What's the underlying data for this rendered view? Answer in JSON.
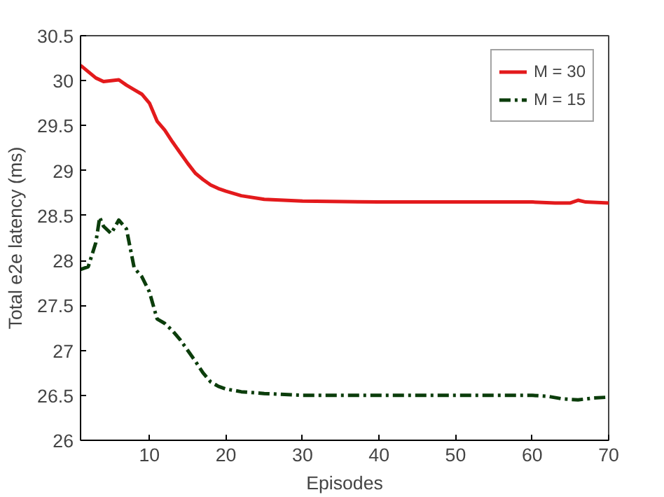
{
  "chart_data": {
    "type": "line",
    "xlabel": "Episodes",
    "ylabel": "Total e2e latency (ms)",
    "xlim": [
      1,
      70
    ],
    "ylim": [
      26,
      30.5
    ],
    "xticks": [
      10,
      20,
      30,
      40,
      50,
      60,
      70
    ],
    "yticks": [
      26,
      26.5,
      27,
      27.5,
      28,
      28.5,
      29,
      29.5,
      30,
      30.5
    ],
    "grid": false,
    "legend": "top right",
    "series": [
      {
        "name": "M = 30",
        "color": "#e31a1c",
        "line_style": "solid",
        "x": [
          1,
          2,
          3,
          4,
          5,
          6,
          7,
          8,
          9,
          10,
          11,
          12,
          13,
          14,
          15,
          16,
          17,
          18,
          19,
          20,
          22,
          25,
          30,
          40,
          50,
          60,
          63,
          65,
          66,
          67,
          70
        ],
        "values": [
          30.17,
          30.1,
          30.03,
          29.99,
          30.0,
          30.01,
          29.95,
          29.9,
          29.85,
          29.75,
          29.55,
          29.45,
          29.32,
          29.2,
          29.08,
          28.97,
          28.9,
          28.84,
          28.8,
          28.77,
          28.72,
          28.68,
          28.66,
          28.65,
          28.65,
          28.65,
          28.64,
          28.64,
          28.67,
          28.65,
          28.64
        ]
      },
      {
        "name": "M = 15",
        "color": "#0b3d0b",
        "line_style": "dashed",
        "x": [
          1,
          2,
          3,
          3.5,
          4,
          5,
          6,
          7,
          8,
          9,
          10,
          11,
          12,
          13,
          14,
          15,
          16,
          17,
          18,
          19,
          20,
          22,
          25,
          30,
          40,
          50,
          60,
          62,
          64,
          66,
          68,
          70
        ],
        "values": [
          27.9,
          27.93,
          28.2,
          28.48,
          28.38,
          28.3,
          28.45,
          28.35,
          27.92,
          27.82,
          27.65,
          27.35,
          27.3,
          27.22,
          27.12,
          27.0,
          26.88,
          26.75,
          26.65,
          26.6,
          26.57,
          26.54,
          26.52,
          26.5,
          26.5,
          26.5,
          26.5,
          26.49,
          26.46,
          26.45,
          26.47,
          26.48
        ]
      }
    ]
  }
}
